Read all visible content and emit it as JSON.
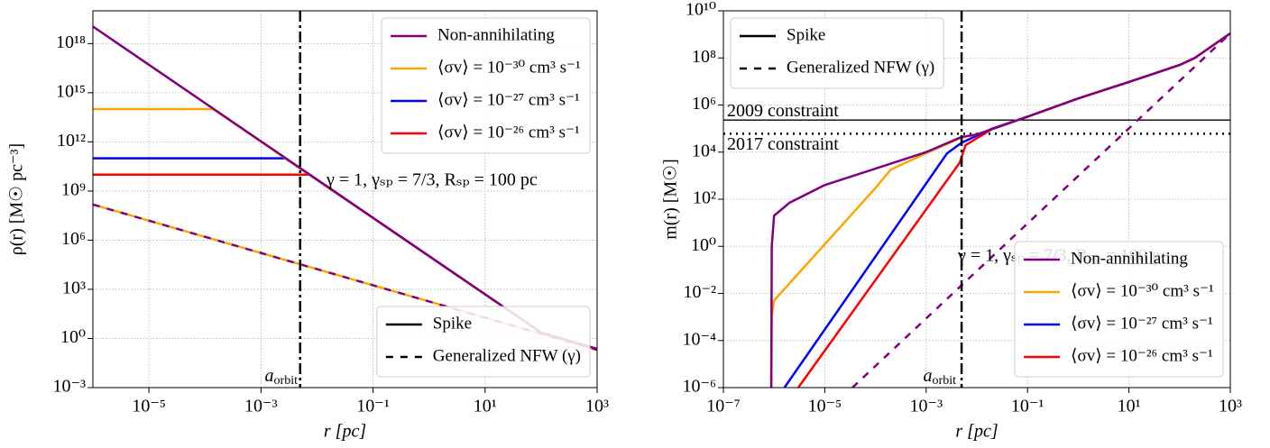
{
  "chart_data": [
    {
      "type": "line",
      "log_x": true,
      "log_y": true,
      "grid": true,
      "x_label": "r [pc]",
      "y_label": "ρ(r) [M☉ pc⁻³]",
      "xlim": [
        1e-06,
        1000
      ],
      "ylim": [
        0.001,
        1e+20
      ],
      "xticks": [
        {
          "value": 1e-05,
          "label": "10⁻⁵"
        },
        {
          "value": 0.001,
          "label": "10⁻³"
        },
        {
          "value": 0.1,
          "label": "10⁻¹"
        },
        {
          "value": 10,
          "label": "10¹"
        },
        {
          "value": 1000,
          "label": "10³"
        }
      ],
      "yticks": [
        {
          "value": 0.001,
          "label": "10⁻³"
        },
        {
          "value": 1,
          "label": "10⁰"
        },
        {
          "value": 1000,
          "label": "10³"
        },
        {
          "value": 1000000.0,
          "label": "10⁶"
        },
        {
          "value": 1000000000.0,
          "label": "10⁹"
        },
        {
          "value": 1000000000000.0,
          "label": "10¹²"
        },
        {
          "value": 1000000000000000.0,
          "label": "10¹⁵"
        },
        {
          "value": 1e+18,
          "label": "10¹⁸"
        }
      ],
      "series": [
        {
          "name": "Non-annihilating",
          "color": "#800080",
          "style": "solid",
          "x": [
            1e-06,
            100,
            1000
          ],
          "values": [
            1.1e+19,
            2.3,
            0.23
          ]
        },
        {
          "name": "⟨σv⟩ = 10⁻³⁰ cm³ s⁻¹",
          "color": "#ffa500",
          "style": "solid",
          "x": [
            1e-06,
            0.00014,
            100,
            1000
          ],
          "values": [
            100000000000000.0,
            100000000000000.0,
            2.3,
            0.23
          ]
        },
        {
          "name": "⟨σv⟩ = 10⁻²⁷ cm³ s⁻¹",
          "color": "#0000ff",
          "style": "solid",
          "x": [
            1e-06,
            0.0027,
            100,
            1000
          ],
          "values": [
            100000000000.0,
            100000000000.0,
            2.3,
            0.23
          ]
        },
        {
          "name": "⟨σv⟩ = 10⁻²⁶ cm³ s⁻¹",
          "color": "#ff0000",
          "style": "solid",
          "x": [
            1e-06,
            0.0074,
            100,
            1000
          ],
          "values": [
            10000000000.0,
            10000000000.0,
            2.3,
            0.23
          ]
        }
      ],
      "nfw_series": [
        {
          "color": "#800080",
          "style": "dashed",
          "x": [
            1e-06,
            1000
          ],
          "values": [
            150000000.0,
            0.2
          ]
        },
        {
          "color": "#ffa500",
          "style": "dashed",
          "x": [
            1e-06,
            1000
          ],
          "values": [
            150000000.0,
            0.2
          ]
        }
      ],
      "legend": "upper right",
      "style_legend": {
        "loc": "lower right",
        "entries": [
          {
            "label": "Spike",
            "style": "solid"
          },
          {
            "label": "Generalized NFW (γ)",
            "style": "dashed"
          }
        ]
      },
      "vlines": [
        {
          "x": 0.005,
          "style": "dashdot",
          "color": "#000000"
        }
      ],
      "annotation": "γ = 1,  γₛₚ = 7/3,  Rₛₚ = 100 pc",
      "orbit_label": {
        "text": "a",
        "sub": "orbit"
      }
    },
    {
      "type": "line",
      "log_x": true,
      "log_y": true,
      "grid": true,
      "x_label": "r [pc]",
      "y_label": "m(r) [M☉]",
      "xlim": [
        1e-07,
        1000
      ],
      "ylim": [
        1e-06,
        10000000000.0
      ],
      "xticks": [
        {
          "value": 1e-07,
          "label": "10⁻⁷"
        },
        {
          "value": 1e-05,
          "label": "10⁻⁵"
        },
        {
          "value": 0.001,
          "label": "10⁻³"
        },
        {
          "value": 0.1,
          "label": "10⁻¹"
        },
        {
          "value": 10,
          "label": "10¹"
        },
        {
          "value": 1000,
          "label": "10³"
        }
      ],
      "yticks": [
        {
          "value": 1e-06,
          "label": "10⁻⁶"
        },
        {
          "value": 0.0001,
          "label": "10⁻⁴"
        },
        {
          "value": 0.01,
          "label": "10⁻²"
        },
        {
          "value": 1,
          "label": "10⁰"
        },
        {
          "value": 100,
          "label": "10²"
        },
        {
          "value": 10000,
          "label": "10⁴"
        },
        {
          "value": 1000000.0,
          "label": "10⁶"
        },
        {
          "value": 100000000.0,
          "label": "10⁸"
        },
        {
          "value": 10000000000.0,
          "label": "10¹⁰"
        }
      ],
      "series": [
        {
          "name": "Non-annihilating",
          "color": "#800080",
          "style": "solid",
          "x": [
            8.8e-07,
            9e-07,
            1e-06,
            2e-06,
            1e-05,
            0.0001,
            0.001,
            0.005,
            0.01,
            0.1,
            1,
            10,
            100,
            200,
            1000
          ],
          "values": [
            1e-06,
            1,
            20,
            70,
            400,
            2000,
            10000,
            44000,
            56000,
            320000,
            1900000,
            9500000,
            50000000.0,
            100000000.0,
            1100000000.0
          ]
        },
        {
          "name": "⟨σv⟩ = 10⁻³⁰ cm³ s⁻¹",
          "color": "#ffa500",
          "style": "solid",
          "x": [
            8.8e-07,
            9e-07,
            1e-06,
            0.0001,
            0.0002,
            0.001,
            0.005,
            0.01,
            0.1,
            1,
            10,
            100,
            200,
            1000
          ],
          "values": [
            1e-06,
            0.001,
            0.005,
            300,
            1800,
            9000,
            42000,
            56000,
            320000,
            1900000,
            9500000,
            50000000.0,
            100000000.0,
            1100000000.0
          ]
        },
        {
          "name": "⟨σv⟩ = 10⁻²⁷ cm³ s⁻¹",
          "color": "#0000ff",
          "style": "solid",
          "x": [
            1.6e-06,
            0.0026,
            0.005,
            0.02,
            0.1,
            1,
            10,
            100,
            200,
            1000
          ],
          "values": [
            1e-06,
            9000,
            25000,
            100000,
            320000,
            1900000,
            9500000,
            50000000.0,
            100000000.0,
            1100000000.0
          ]
        },
        {
          "name": "⟨σv⟩ = 10⁻²⁶ cm³ s⁻¹",
          "color": "#ff0000",
          "style": "solid",
          "x": [
            3e-06,
            0.0046,
            0.006,
            0.02,
            0.1,
            1,
            10,
            100,
            200,
            1000
          ],
          "values": [
            1e-06,
            3600,
            20000,
            95000,
            320000,
            1900000,
            9500000,
            50000000.0,
            100000000.0,
            1100000000.0
          ]
        }
      ],
      "nfw_series": [
        {
          "color": "#800080",
          "style": "dashed",
          "x": [
            3.5e-05,
            1000
          ],
          "values": [
            1e-06,
            1100000000.0
          ]
        }
      ],
      "legend": "lower right",
      "style_legend": {
        "loc": "upper left",
        "entries": [
          {
            "label": "Spike",
            "style": "solid"
          },
          {
            "label": "Generalized NFW (γ)",
            "style": "dashed"
          }
        ]
      },
      "vlines": [
        {
          "x": 0.005,
          "style": "dashdot",
          "color": "#000000"
        }
      ],
      "hlines": [
        {
          "y": 230000,
          "label": "2009 constraint",
          "style": "solid",
          "color": "#000000"
        },
        {
          "y": 60000,
          "label": "2017 constraint",
          "style": "dotted",
          "color": "#000000"
        }
      ],
      "annotation": "γ = 1,  γₛₚ = 7/3,  Rₛₚ = 100 pc",
      "orbit_label": {
        "text": "a",
        "sub": "orbit"
      }
    }
  ]
}
